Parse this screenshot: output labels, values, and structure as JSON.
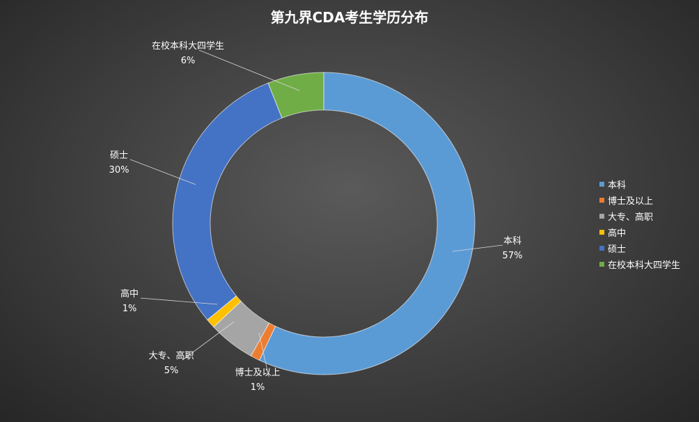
{
  "chart_data": {
    "type": "pie",
    "title": "第九界CDA考生学历分布",
    "hole": true,
    "legend_position": "right",
    "slices": [
      {
        "name": "本科",
        "value": 57,
        "label": "57%",
        "color": "#5b9bd5"
      },
      {
        "name": "博士及以上",
        "value": 1,
        "label": "1%",
        "color": "#ed7d31"
      },
      {
        "name": "大专、高职",
        "value": 5,
        "label": "5%",
        "color": "#a5a5a5"
      },
      {
        "name": "高中",
        "value": 1,
        "label": "1%",
        "color": "#ffc000"
      },
      {
        "name": "硕士",
        "value": 30,
        "label": "30%",
        "color": "#4472c4"
      },
      {
        "name": "在校本科大四学生",
        "value": 6,
        "label": "6%",
        "color": "#70ad47"
      }
    ]
  }
}
